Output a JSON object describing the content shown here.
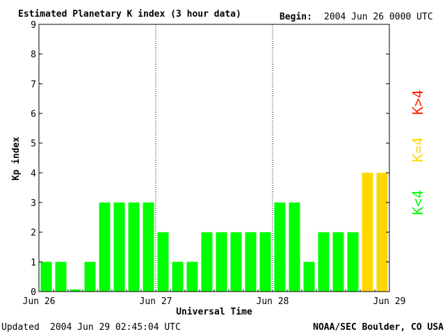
{
  "header": {
    "title": "Estimated Planetary K index (3 hour data)",
    "begin_label": "Begin:",
    "begin_value": "2004 Jun 26 0000 UTC"
  },
  "footer": {
    "updated_label": "Updated",
    "updated_value": "2004 Jun 29 02:45:04 UTC",
    "source": "NOAA/SEC Boulder, CO USA"
  },
  "legend": {
    "below": "K<4",
    "equal": "K=4",
    "above": "K>4"
  },
  "colors": {
    "below": "#00ff00",
    "equal": "#ffd700",
    "above": "#ff2200",
    "axis": "#000000"
  },
  "chart_data": {
    "type": "bar",
    "title": "Estimated Planetary K index (3 hour data)",
    "xlabel": "Universal Time",
    "ylabel": "Kp index",
    "ylim": [
      0,
      9
    ],
    "yticks": [
      "0",
      "1",
      "2",
      "3",
      "4",
      "5",
      "6",
      "7",
      "8",
      "9"
    ],
    "day_labels": [
      "Jun 26",
      "Jun 27",
      "Jun 28",
      "Jun 29"
    ],
    "day_separators": "dotted",
    "values": [
      1,
      1,
      0.07,
      1,
      3,
      3,
      3,
      3,
      2,
      1,
      1,
      2,
      2,
      2,
      2,
      2,
      3,
      3,
      1,
      2,
      2,
      2,
      4,
      4
    ]
  }
}
